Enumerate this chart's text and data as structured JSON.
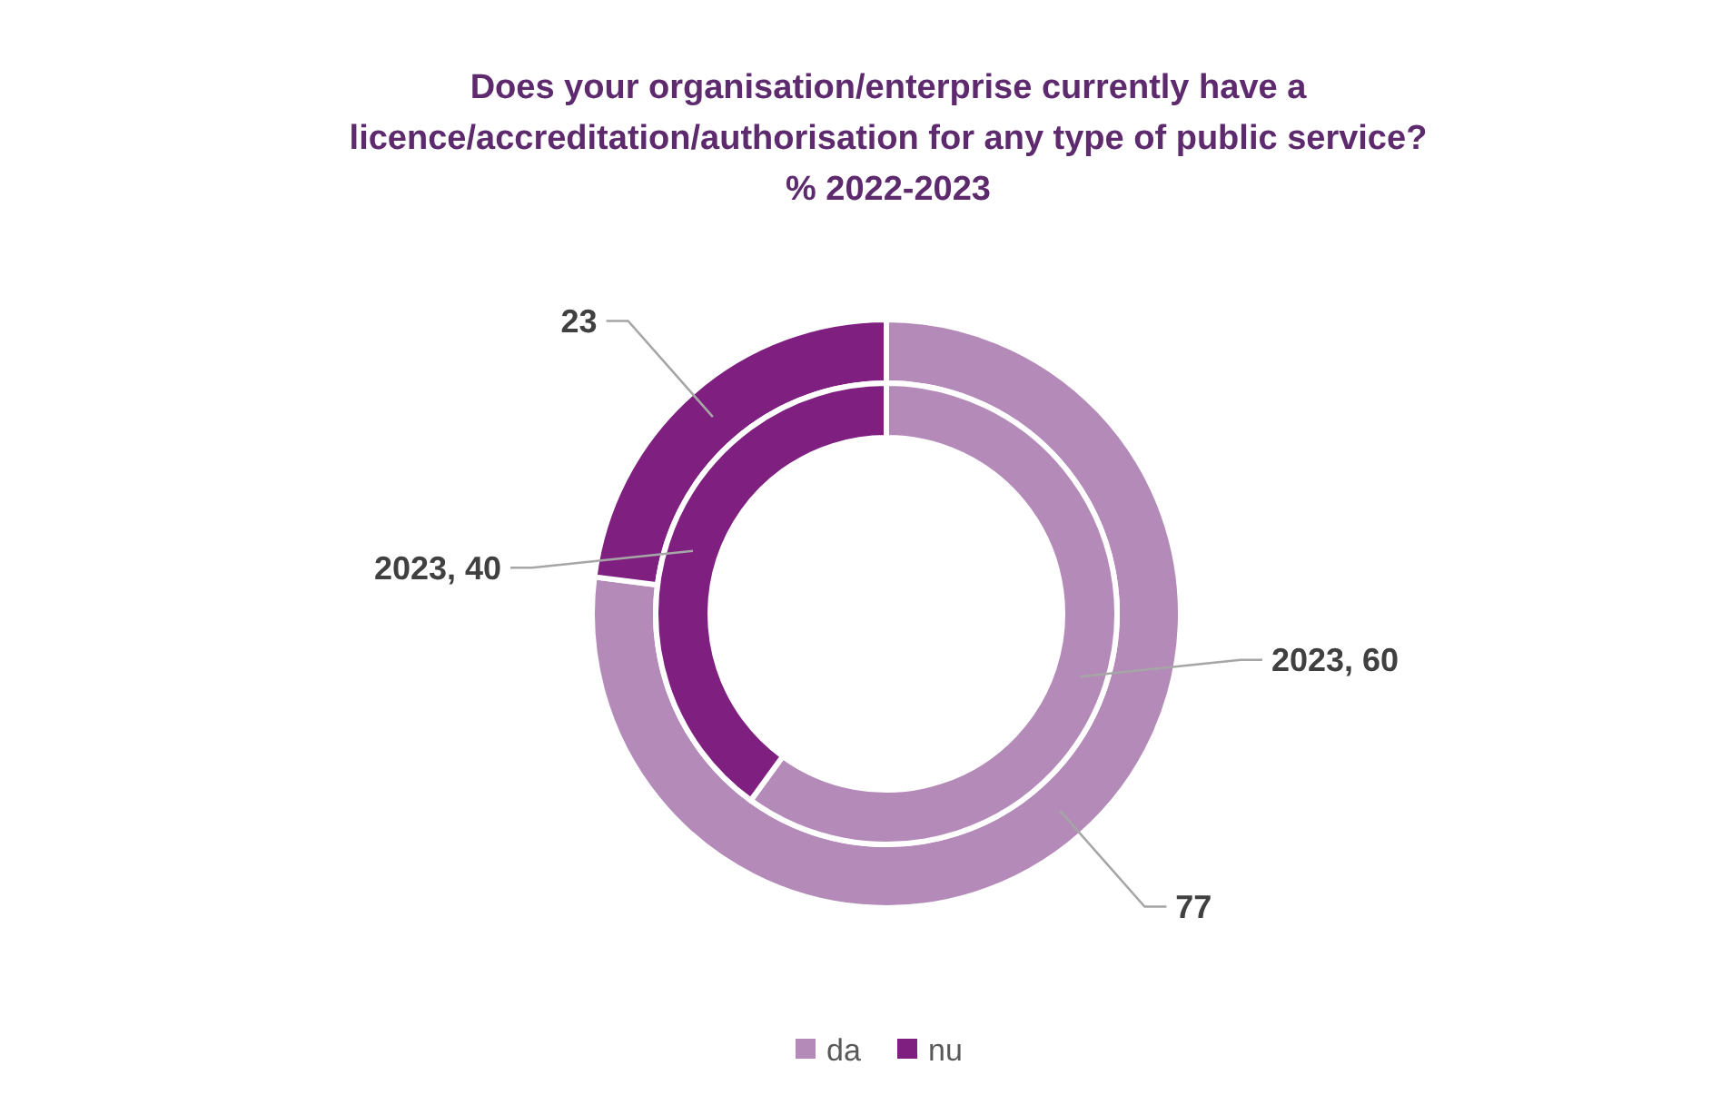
{
  "chart_data": {
    "type": "donut",
    "title": "Does your organisation/enterprise currently have a\nlicence/accreditation/authorisation  for any type of public service?\n% 2022-2023",
    "categories": [
      "da",
      "nu"
    ],
    "colors": [
      "#b48ab8",
      "#7f1f80"
    ],
    "series": [
      {
        "values": [
          77,
          23
        ],
        "value_labels": [
          "77",
          "23"
        ]
      },
      {
        "values": [
          60,
          40
        ],
        "value_labels": [
          "2023, 60",
          "2023, 40"
        ]
      }
    ],
    "legend": "bottom"
  }
}
